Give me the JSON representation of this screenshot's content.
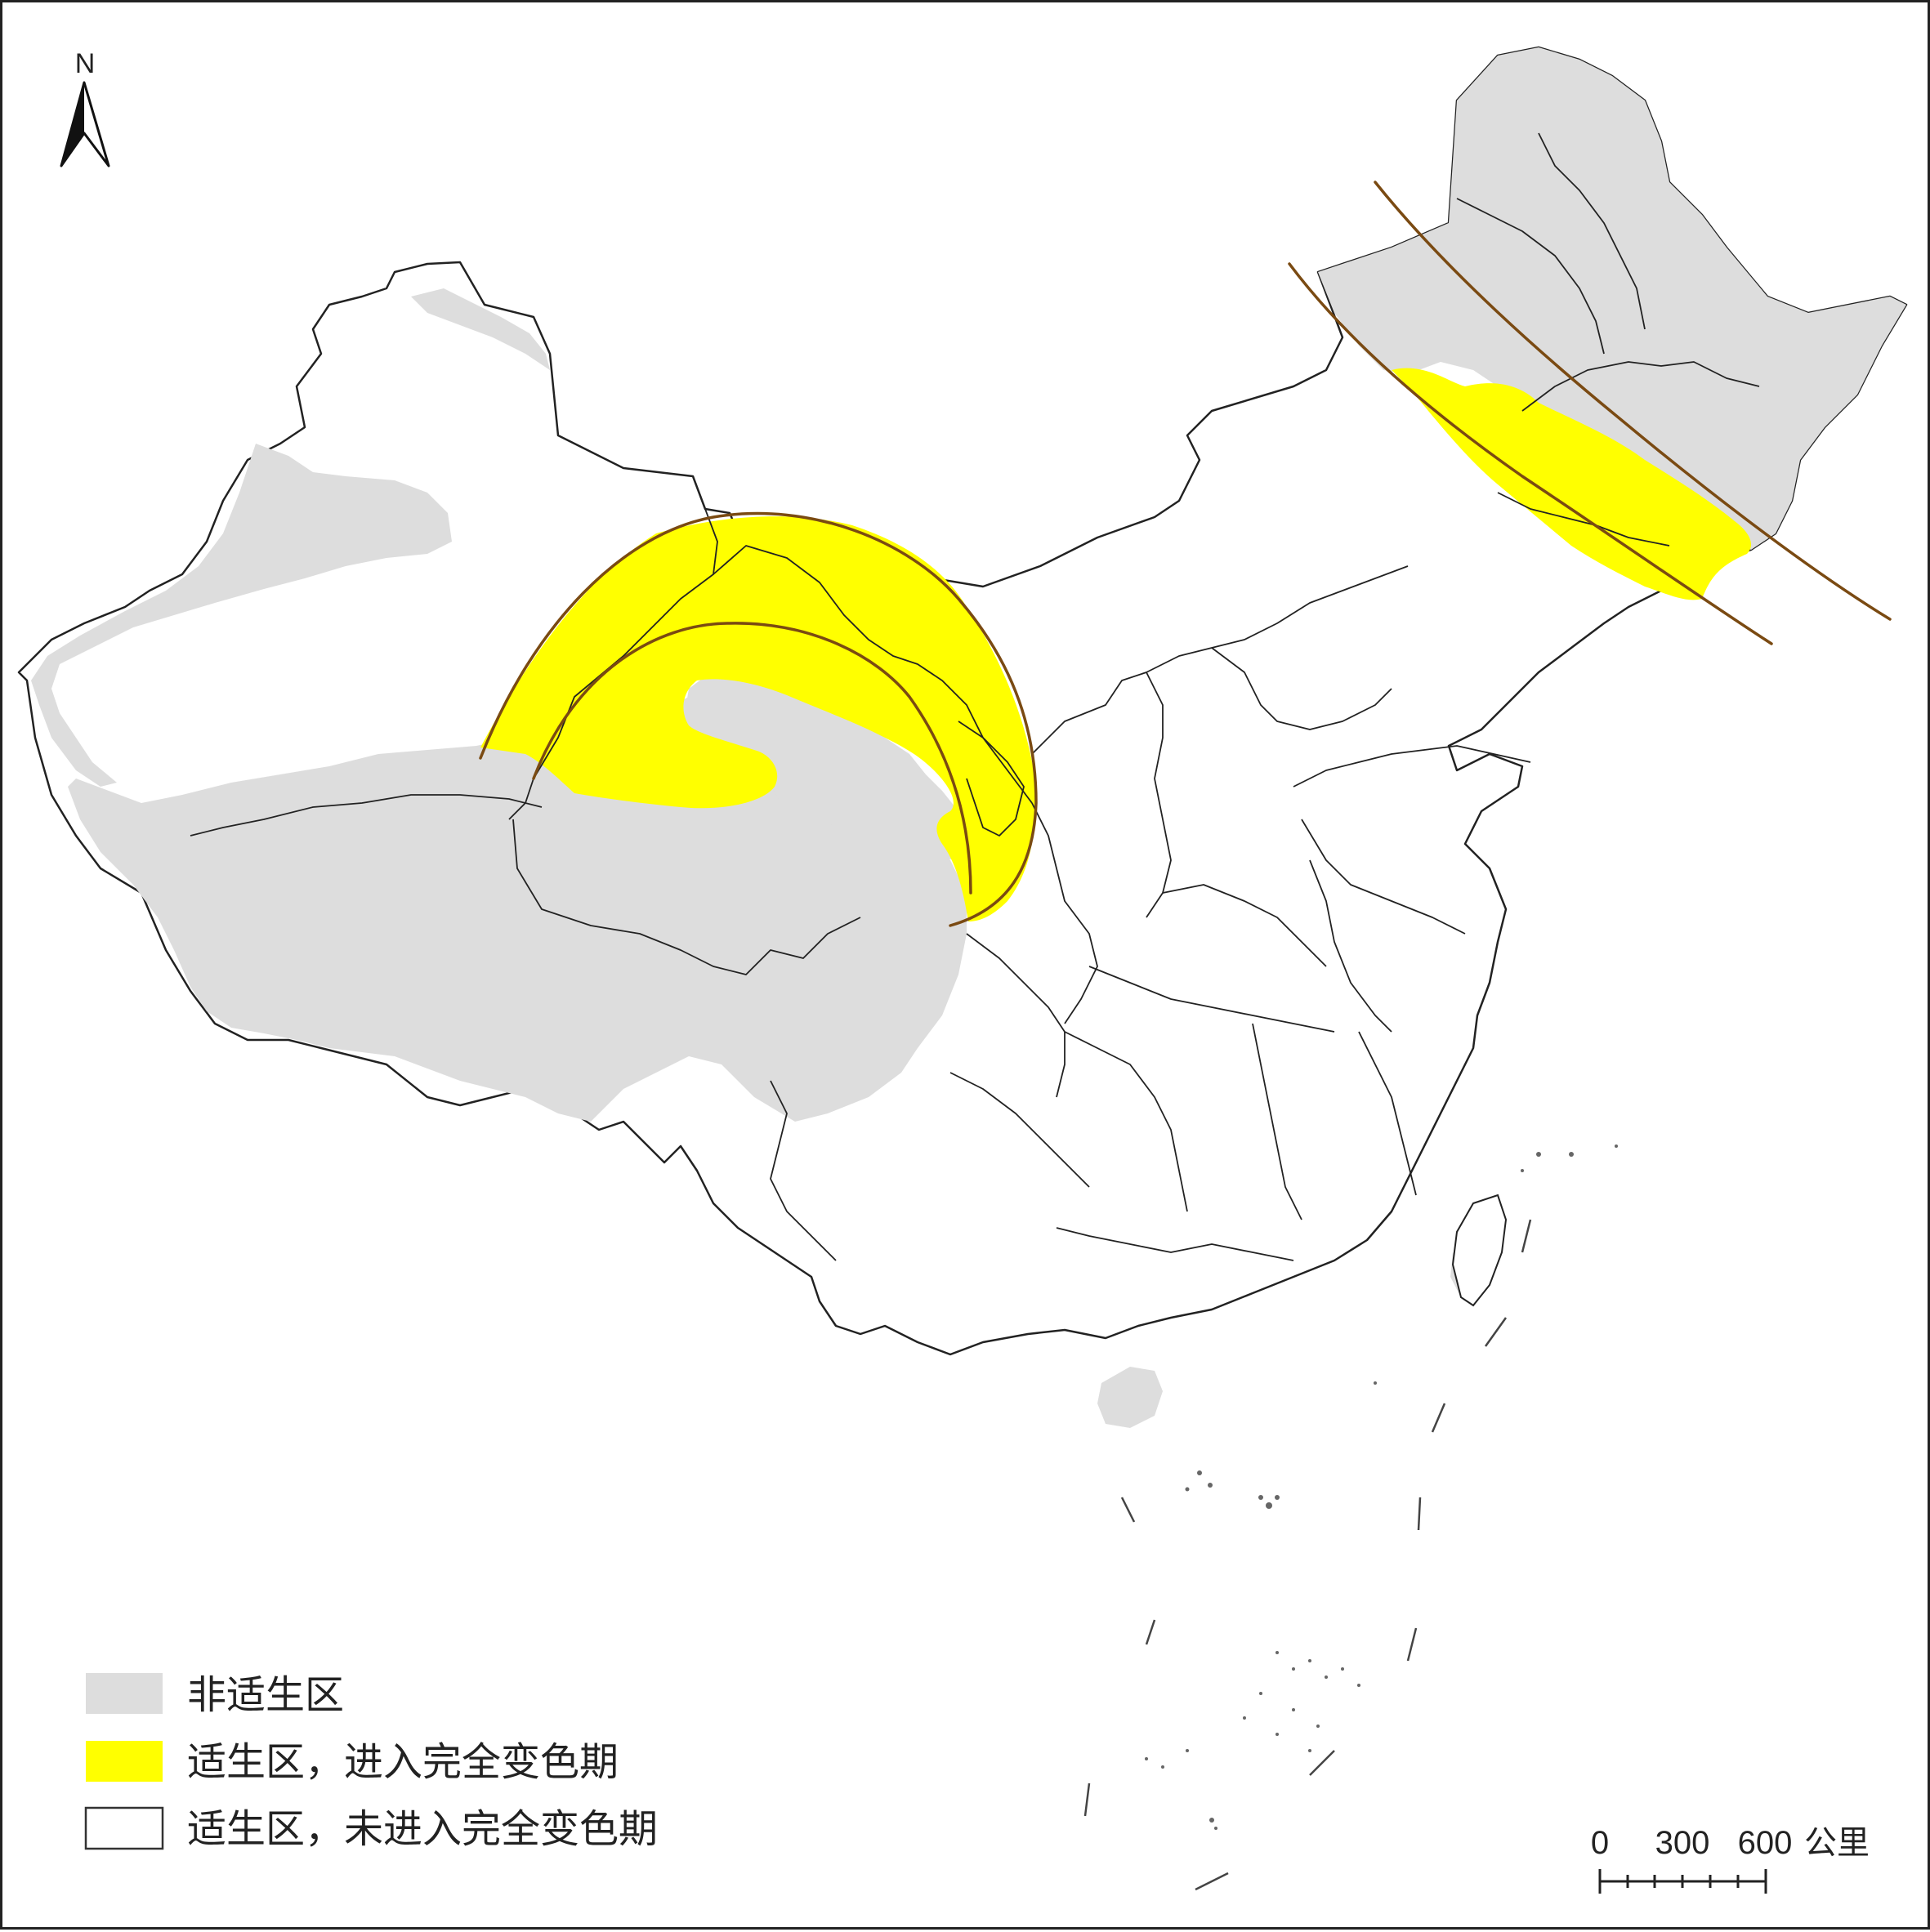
{
  "north_arrow": {
    "label": "N",
    "icon": "north-arrow-icon"
  },
  "legend": {
    "items": [
      {
        "label": "非适生区",
        "color": "#dddddd",
        "outline": false
      },
      {
        "label": "适生区，进入完全变色期",
        "color": "#ffff00",
        "outline": false
      },
      {
        "label": "适生区，未进入完全变色期",
        "color": "#ffffff",
        "outline": true
      }
    ]
  },
  "scale_bar": {
    "tick_labels": [
      "0",
      "300",
      "600"
    ],
    "unit": "公里"
  },
  "colors": {
    "non_suitable": "#dddddd",
    "full_color_change": "#ffff00",
    "boundary": "#222222",
    "arc": "#7a4a12"
  }
}
